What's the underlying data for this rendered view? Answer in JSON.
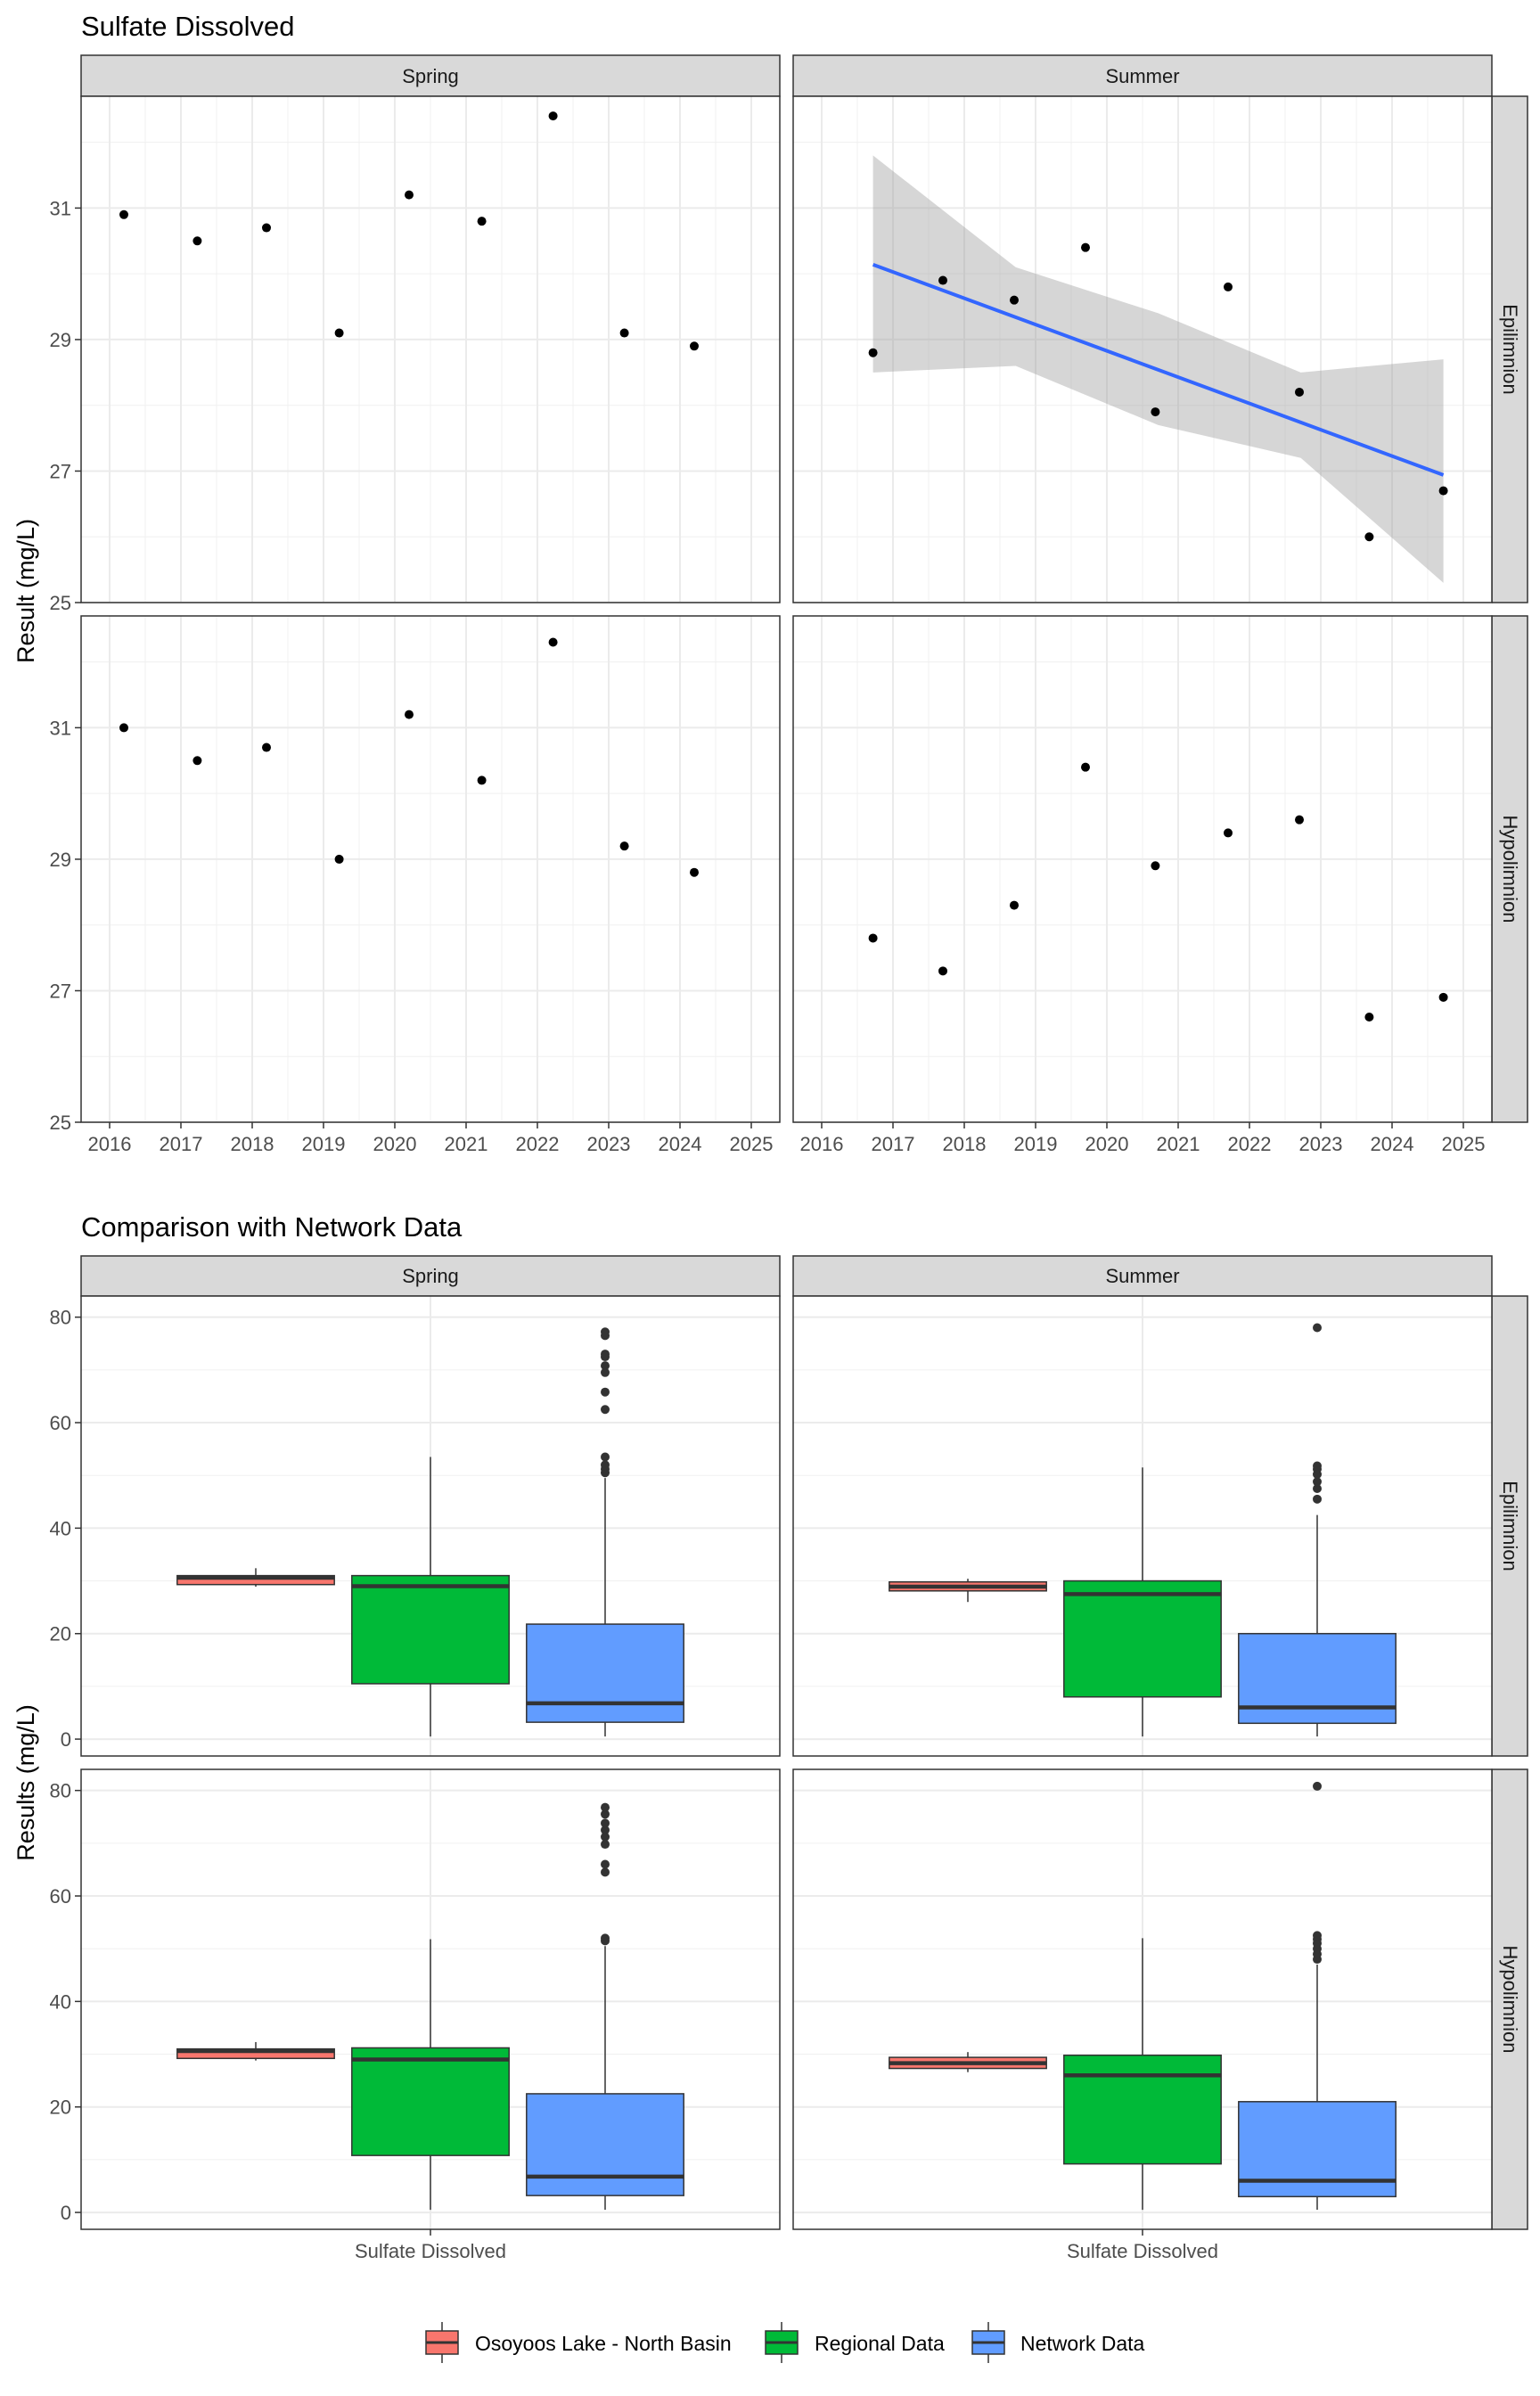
{
  "chart_data": [
    {
      "type": "scatter",
      "title": "Sulfate Dissolved",
      "ylabel": "Result (mg/L)",
      "xlabel": "",
      "x_ticks": [
        "2016",
        "2017",
        "2018",
        "2019",
        "2020",
        "2021",
        "2022",
        "2023",
        "2024",
        "2025"
      ],
      "y_ticks": [
        "25",
        "27",
        "29",
        "31"
      ],
      "xlim": [
        2015.6,
        2025.4
      ],
      "ylim": [
        25,
        32.7
      ],
      "grid": true,
      "columns": [
        "Spring",
        "Summer"
      ],
      "rows": [
        "Epilimnion",
        "Hypolimnion"
      ],
      "panels": [
        {
          "season": "Spring",
          "layer": "Epilimnion",
          "points": [
            [
              2016.2,
              30.9
            ],
            [
              2017.23,
              30.5
            ],
            [
              2018.2,
              30.7
            ],
            [
              2019.22,
              29.1
            ],
            [
              2020.2,
              31.2
            ],
            [
              2021.22,
              30.8
            ],
            [
              2022.22,
              32.4
            ],
            [
              2023.22,
              29.1
            ],
            [
              2024.2,
              28.9
            ]
          ]
        },
        {
          "season": "Summer",
          "layer": "Epilimnion",
          "points": [
            [
              2016.72,
              28.8
            ],
            [
              2017.7,
              29.9
            ],
            [
              2018.7,
              29.6
            ],
            [
              2019.7,
              30.4
            ],
            [
              2020.68,
              27.9
            ],
            [
              2021.7,
              29.8
            ],
            [
              2022.7,
              28.2
            ],
            [
              2023.68,
              26.0
            ],
            [
              2024.72,
              26.7
            ]
          ],
          "trend": {
            "x": [
              2016.72,
              2018.72,
              2020.72,
              2022.72,
              2024.72
            ],
            "fit": [
              30.14,
              29.34,
              28.54,
              27.74,
              26.94
            ],
            "lower": [
              28.5,
              28.6,
              27.7,
              27.2,
              25.3
            ],
            "upper": [
              31.8,
              30.1,
              29.4,
              28.5,
              28.7
            ]
          }
        },
        {
          "season": "Spring",
          "layer": "Hypolimnion",
          "points": [
            [
              2016.2,
              31.0
            ],
            [
              2017.23,
              30.5
            ],
            [
              2018.2,
              30.7
            ],
            [
              2019.22,
              29.0
            ],
            [
              2020.2,
              31.2
            ],
            [
              2021.22,
              30.2
            ],
            [
              2022.22,
              32.3
            ],
            [
              2023.22,
              29.2
            ],
            [
              2024.2,
              28.8
            ]
          ]
        },
        {
          "season": "Summer",
          "layer": "Hypolimnion",
          "points": [
            [
              2016.72,
              27.8
            ],
            [
              2017.7,
              27.3
            ],
            [
              2018.7,
              28.3
            ],
            [
              2019.7,
              30.4
            ],
            [
              2020.68,
              28.9
            ],
            [
              2021.7,
              29.4
            ],
            [
              2022.7,
              29.6
            ],
            [
              2023.68,
              26.6
            ],
            [
              2024.72,
              26.9
            ]
          ]
        }
      ]
    },
    {
      "type": "boxplot",
      "title": "Comparison with Network Data",
      "ylabel": "Results (mg/L)",
      "xlabel": "",
      "x_category": "Sulfate Dissolved",
      "y_ticks": [
        "0",
        "20",
        "40",
        "60",
        "80"
      ],
      "ylim": [
        -3.2,
        84
      ],
      "grid": true,
      "legend_position": "bottom",
      "series": [
        {
          "name": "Osoyoos Lake - North Basin",
          "color": "#F8766D"
        },
        {
          "name": "Regional Data",
          "color": "#00BA38"
        },
        {
          "name": "Network Data",
          "color": "#619CFF"
        }
      ],
      "columns": [
        "Spring",
        "Summer"
      ],
      "rows": [
        "Epilimnion",
        "Hypolimnion"
      ],
      "panels": [
        {
          "season": "Spring",
          "layer": "Epilimnion",
          "boxes": [
            {
              "min": 28.9,
              "q1": 29.3,
              "median": 30.6,
              "q3": 31.0,
              "max": 32.4,
              "outliers": []
            },
            {
              "min": 0.5,
              "q1": 10.5,
              "median": 29.0,
              "q3": 31.0,
              "max": 53.5,
              "outliers": []
            },
            {
              "min": 0.5,
              "q1": 3.2,
              "median": 6.8,
              "q3": 21.8,
              "max": 49.5,
              "outliers": [
                50.5,
                51.2,
                52.0,
                53.5,
                62.5,
                65.8,
                69.5,
                70.8,
                72.5,
                73.0,
                76.5,
                77.2
              ]
            }
          ]
        },
        {
          "season": "Summer",
          "layer": "Epilimnion",
          "boxes": [
            {
              "min": 26.0,
              "q1": 28.1,
              "median": 28.9,
              "q3": 29.8,
              "max": 30.4,
              "outliers": []
            },
            {
              "min": 0.5,
              "q1": 8.0,
              "median": 27.5,
              "q3": 30.0,
              "max": 51.5,
              "outliers": []
            },
            {
              "min": 0.5,
              "q1": 3.0,
              "median": 6.0,
              "q3": 20.0,
              "max": 42.5,
              "outliers": [
                45.5,
                47.5,
                48.8,
                50.2,
                51.2,
                51.8,
                78.0
              ]
            }
          ]
        },
        {
          "season": "Spring",
          "layer": "Hypolimnion",
          "boxes": [
            {
              "min": 28.8,
              "q1": 29.2,
              "median": 30.6,
              "q3": 31.0,
              "max": 32.3,
              "outliers": []
            },
            {
              "min": 0.5,
              "q1": 10.8,
              "median": 29.0,
              "q3": 31.2,
              "max": 51.8,
              "outliers": []
            },
            {
              "min": 0.5,
              "q1": 3.2,
              "median": 6.8,
              "q3": 22.5,
              "max": 50.5,
              "outliers": [
                51.5,
                52.0,
                64.5,
                66.0,
                69.8,
                71.2,
                72.5,
                73.8,
                75.5,
                76.8
              ]
            }
          ]
        },
        {
          "season": "Summer",
          "layer": "Hypolimnion",
          "boxes": [
            {
              "min": 26.6,
              "q1": 27.3,
              "median": 28.3,
              "q3": 29.4,
              "max": 30.4,
              "outliers": []
            },
            {
              "min": 0.5,
              "q1": 9.2,
              "median": 26.0,
              "q3": 29.8,
              "max": 52.0,
              "outliers": []
            },
            {
              "min": 0.5,
              "q1": 3.0,
              "median": 6.0,
              "q3": 21.0,
              "max": 47.0,
              "outliers": [
                48.0,
                49.0,
                50.0,
                51.0,
                51.8,
                52.5,
                80.8
              ]
            }
          ]
        }
      ]
    }
  ]
}
